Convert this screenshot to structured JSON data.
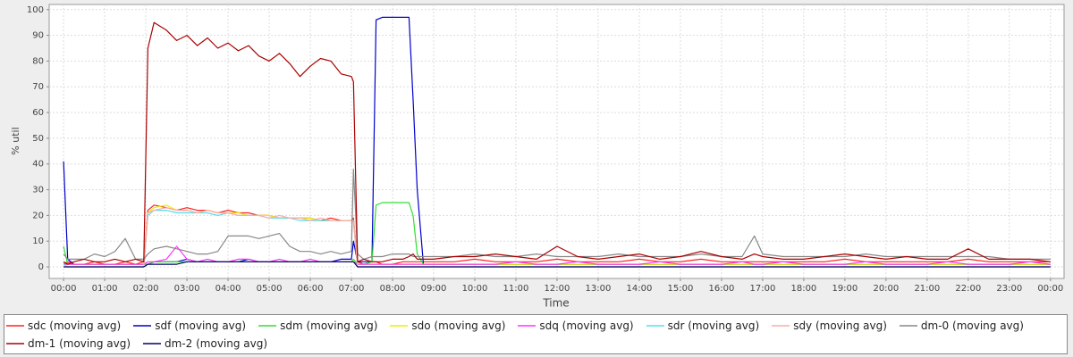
{
  "chart_data": {
    "type": "line",
    "x_label": "Time",
    "y_label": "% util",
    "x": [
      0,
      0.1,
      0.25,
      0.5,
      0.75,
      1,
      1.25,
      1.5,
      1.75,
      1.95,
      2.05,
      2.2,
      2.5,
      2.75,
      3,
      3.25,
      3.5,
      3.75,
      4,
      4.25,
      4.5,
      4.75,
      5,
      5.25,
      5.5,
      5.75,
      6,
      6.25,
      6.5,
      6.75,
      7,
      7.05,
      7.15,
      7.3,
      7.5,
      7.6,
      7.75,
      8,
      8.25,
      8.4,
      8.5,
      8.6,
      8.75,
      9,
      9.5,
      10,
      10.5,
      11,
      11.5,
      12,
      12.5,
      13,
      13.5,
      14,
      14.5,
      15,
      15.5,
      16,
      16.5,
      16.8,
      17,
      17.5,
      18,
      18.5,
      19,
      19.5,
      20,
      20.5,
      21,
      21.5,
      22,
      22.5,
      23,
      23.5,
      24
    ],
    "xlim": [
      -0.35,
      24.33
    ],
    "xticks": [
      {
        "value": 0,
        "label": "00:00"
      },
      {
        "value": 1,
        "label": "01:00"
      },
      {
        "value": 2,
        "label": "02:00"
      },
      {
        "value": 3,
        "label": "03:00"
      },
      {
        "value": 4,
        "label": "04:00"
      },
      {
        "value": 5,
        "label": "05:00"
      },
      {
        "value": 6,
        "label": "06:00"
      },
      {
        "value": 7,
        "label": "07:00"
      },
      {
        "value": 8,
        "label": "08:00"
      },
      {
        "value": 9,
        "label": "09:00"
      },
      {
        "value": 10,
        "label": "10:00"
      },
      {
        "value": 11,
        "label": "11:00"
      },
      {
        "value": 12,
        "label": "12:00"
      },
      {
        "value": 13,
        "label": "13:00"
      },
      {
        "value": 14,
        "label": "14:00"
      },
      {
        "value": 15,
        "label": "15:00"
      },
      {
        "value": 16,
        "label": "16:00"
      },
      {
        "value": 17,
        "label": "17:00"
      },
      {
        "value": 18,
        "label": "18:00"
      },
      {
        "value": 19,
        "label": "19:00"
      },
      {
        "value": 20,
        "label": "20:00"
      },
      {
        "value": 21,
        "label": "21:00"
      },
      {
        "value": 22,
        "label": "22:00"
      },
      {
        "value": 23,
        "label": "23:00"
      },
      {
        "value": 24,
        "label": "00:00"
      }
    ],
    "ylim": [
      -4.5,
      102
    ],
    "yticks": [
      0,
      10,
      20,
      30,
      40,
      50,
      60,
      70,
      80,
      90,
      100
    ],
    "grid": true,
    "legend": "bottom",
    "series": [
      {
        "name": "sdc (moving avg)",
        "color": "#ff2020",
        "values": [
          1,
          2,
          1,
          1,
          2,
          1,
          1,
          2,
          1,
          2,
          22,
          24,
          23,
          22,
          23,
          22,
          22,
          21,
          22,
          21,
          21,
          20,
          20,
          19,
          19,
          19,
          19,
          18,
          19,
          18,
          18,
          19,
          2,
          1,
          2,
          2,
          1,
          1,
          2,
          2,
          2,
          2,
          2,
          2,
          2,
          3,
          2,
          2,
          2,
          3,
          2,
          2,
          2,
          3,
          2,
          2,
          3,
          2,
          2,
          2,
          2,
          2,
          2,
          2,
          3,
          2,
          2,
          2,
          2,
          2,
          3,
          2,
          2,
          2,
          2
        ]
      },
      {
        "name": "sdf (moving avg)",
        "color": "#0000cc",
        "values": [
          41,
          3,
          1,
          1,
          1,
          1,
          1,
          1,
          1,
          1,
          1,
          2,
          2,
          2,
          3,
          2,
          2,
          2,
          2,
          2,
          3,
          2,
          2,
          2,
          2,
          2,
          2,
          2,
          2,
          3,
          3,
          10,
          2,
          2,
          2,
          96,
          97,
          97,
          97,
          97,
          65,
          30,
          1,
          1,
          1,
          1,
          1,
          1,
          1,
          1,
          1,
          1,
          1,
          1,
          1,
          1,
          1,
          1,
          1,
          1,
          1,
          1,
          1,
          1,
          1,
          1,
          1,
          1,
          1,
          1,
          1,
          1,
          1,
          1,
          1
        ]
      },
      {
        "name": "sdm (moving avg)",
        "color": "#33dd33",
        "values": [
          8,
          1,
          1,
          1,
          1,
          1,
          1,
          1,
          1,
          1,
          1,
          2,
          2,
          2,
          2,
          2,
          2,
          2,
          2,
          2,
          2,
          2,
          2,
          2,
          2,
          2,
          2,
          2,
          2,
          2,
          2,
          3,
          1,
          1,
          2,
          24,
          25,
          25,
          25,
          25,
          20,
          5,
          1,
          1,
          1,
          1,
          1,
          1,
          1,
          1,
          1,
          1,
          1,
          1,
          1,
          1,
          1,
          1,
          1,
          1,
          1,
          1,
          1,
          1,
          1,
          1,
          1,
          1,
          1,
          1,
          1,
          1,
          1,
          1,
          1
        ]
      },
      {
        "name": "sdo (moving avg)",
        "color": "#eeee00",
        "values": [
          1,
          1,
          1,
          1,
          1,
          1,
          1,
          1,
          1,
          1,
          21,
          23,
          24,
          22,
          22,
          21,
          22,
          21,
          21,
          21,
          20,
          20,
          20,
          19,
          19,
          19,
          19,
          18,
          18,
          18,
          18,
          18,
          1,
          1,
          1,
          1,
          1,
          1,
          1,
          1,
          1,
          1,
          1,
          1,
          1,
          1,
          1,
          1,
          1,
          1,
          1,
          1,
          1,
          1,
          1,
          1,
          1,
          1,
          1,
          1,
          1,
          1,
          1,
          1,
          1,
          1,
          1,
          1,
          1,
          1,
          1,
          1,
          1,
          1,
          1
        ]
      },
      {
        "name": "sdq (moving avg)",
        "color": "#ff33ff",
        "values": [
          1,
          1,
          1,
          1,
          1,
          1,
          1,
          1,
          1,
          1,
          2,
          2,
          3,
          8,
          3,
          2,
          3,
          2,
          2,
          3,
          3,
          2,
          2,
          3,
          2,
          2,
          3,
          2,
          2,
          2,
          2,
          2,
          1,
          1,
          1,
          1,
          1,
          1,
          1,
          1,
          1,
          1,
          1,
          1,
          1,
          1,
          1,
          2,
          1,
          1,
          2,
          1,
          1,
          1,
          2,
          1,
          1,
          1,
          2,
          1,
          1,
          2,
          1,
          1,
          1,
          2,
          1,
          1,
          1,
          2,
          1,
          1,
          1,
          2,
          1
        ]
      },
      {
        "name": "sdr (moving avg)",
        "color": "#55ddee",
        "values": [
          1,
          0,
          0,
          0,
          0,
          0,
          0,
          0,
          0,
          0,
          20,
          22,
          22,
          21,
          21,
          21,
          21,
          20,
          21,
          20,
          20,
          20,
          19,
          19,
          19,
          18,
          18,
          18,
          18,
          18,
          18,
          18,
          0,
          0,
          0,
          0,
          0,
          0,
          0,
          0,
          0,
          0,
          0,
          0,
          0,
          0,
          0,
          0,
          0,
          0,
          0,
          0,
          0,
          0,
          0,
          0,
          0,
          0,
          0,
          0,
          0,
          0,
          0,
          0,
          0,
          0,
          0,
          0,
          0,
          0,
          0,
          0,
          0,
          0,
          0
        ]
      },
      {
        "name": "sdy (moving avg)",
        "color": "#ffaaaa",
        "values": [
          0,
          0,
          0,
          0,
          0,
          0,
          0,
          0,
          0,
          0,
          21,
          22,
          23,
          22,
          22,
          21,
          22,
          21,
          21,
          20,
          20,
          20,
          19,
          20,
          19,
          19,
          18,
          19,
          18,
          18,
          18,
          18,
          0,
          0,
          0,
          0,
          0,
          0,
          0,
          0,
          0,
          0,
          0,
          0,
          0,
          0,
          0,
          0,
          0,
          0,
          0,
          0,
          0,
          0,
          0,
          0,
          0,
          0,
          0,
          0,
          0,
          0,
          0,
          0,
          0,
          0,
          0,
          0,
          0,
          0,
          0,
          0,
          0,
          0,
          0
        ]
      },
      {
        "name": "dm-0 (moving avg)",
        "color": "#888888",
        "values": [
          5,
          3,
          3,
          3,
          5,
          4,
          6,
          11,
          3,
          3,
          5,
          7,
          8,
          7,
          6,
          5,
          5,
          6,
          12,
          12,
          12,
          11,
          12,
          13,
          8,
          6,
          6,
          5,
          6,
          5,
          6,
          38,
          5,
          3,
          4,
          4,
          4,
          5,
          5,
          5,
          4,
          4,
          4,
          4,
          4,
          5,
          4,
          4,
          5,
          4,
          4,
          4,
          5,
          4,
          4,
          4,
          5,
          4,
          4,
          12,
          5,
          4,
          4,
          4,
          4,
          5,
          4,
          4,
          4,
          4,
          4,
          4,
          3,
          3,
          3
        ]
      },
      {
        "name": "dm-1 (moving avg)",
        "color": "#aa0000",
        "values": [
          2,
          1,
          2,
          3,
          2,
          2,
          3,
          2,
          3,
          2,
          85,
          95,
          92,
          88,
          90,
          86,
          89,
          85,
          87,
          84,
          86,
          82,
          80,
          83,
          79,
          74,
          78,
          81,
          80,
          75,
          74,
          72,
          2,
          3,
          2,
          2,
          2,
          3,
          3,
          4,
          5,
          3,
          3,
          3,
          4,
          4,
          5,
          4,
          3,
          8,
          4,
          3,
          4,
          5,
          3,
          4,
          6,
          4,
          3,
          5,
          4,
          3,
          3,
          4,
          5,
          4,
          3,
          4,
          3,
          3,
          7,
          3,
          3,
          3,
          2
        ]
      },
      {
        "name": "dm-2 (moving avg)",
        "color": "#000066",
        "values": [
          0,
          0,
          0,
          0,
          0,
          0,
          0,
          0,
          0,
          0,
          1,
          1,
          1,
          1,
          2,
          2,
          2,
          2,
          2,
          2,
          2,
          2,
          2,
          2,
          2,
          2,
          2,
          2,
          2,
          2,
          2,
          2,
          0,
          0,
          0,
          0,
          0,
          0,
          0,
          0,
          0,
          0,
          0,
          0,
          0,
          0,
          0,
          0,
          0,
          0,
          0,
          0,
          0,
          0,
          0,
          0,
          0,
          0,
          0,
          0,
          0,
          0,
          0,
          0,
          0,
          0,
          0,
          0,
          0,
          0,
          0,
          0,
          0,
          0,
          0
        ]
      }
    ]
  }
}
